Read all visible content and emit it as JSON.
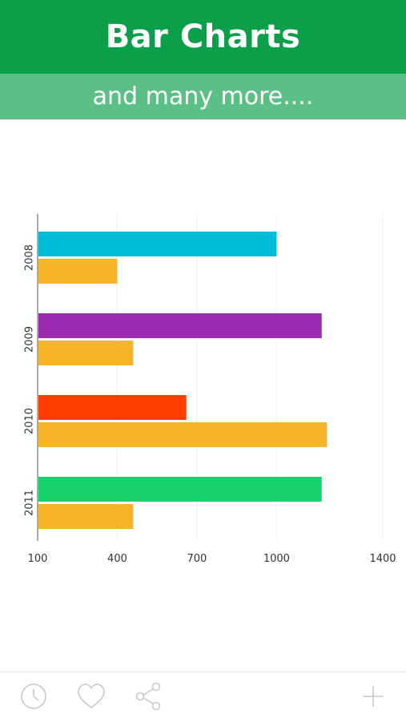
{
  "header": {
    "title": "Bar Charts"
  },
  "subheader": {
    "subtitle": "and many more...."
  },
  "toolbar": {
    "icons": [
      "clock-icon",
      "heart-icon",
      "share-icon",
      "add-icon"
    ]
  },
  "colors": {
    "header_bg": "#0b9f4a",
    "subheader_bg": "#5bbf86",
    "series_secondary": "#f6b42b",
    "toolbar_icon": "#c8c8c8"
  },
  "chart_data": {
    "type": "bar",
    "orientation": "horizontal",
    "categories": [
      "2008",
      "2009",
      "2010",
      "2011"
    ],
    "series": [
      {
        "values": [
          1000,
          1170,
          660,
          1170
        ],
        "colors": [
          "#00bcd9",
          "#9b2bb0",
          "#ff3d00",
          "#16d26e"
        ]
      },
      {
        "values": [
          400,
          460,
          1190,
          460
        ],
        "color": "#f6b42b"
      }
    ],
    "x_ticks": [
      "100",
      "400",
      "700",
      "1000",
      "1400"
    ],
    "xlim": [
      100,
      1400
    ],
    "grid": true
  }
}
